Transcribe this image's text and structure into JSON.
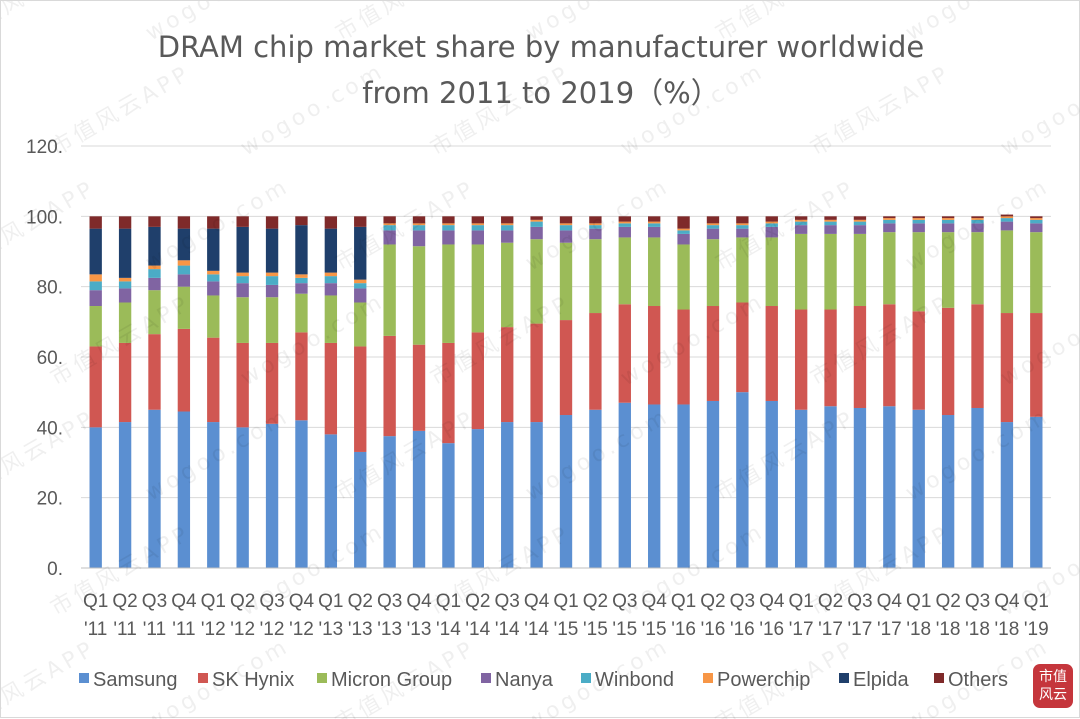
{
  "chart_data": {
    "type": "bar",
    "stacked": true,
    "title_lines": [
      "DRAM chip market share by manufacturer worldwide",
      "from 2011 to 2019（%）"
    ],
    "xlabel": "",
    "ylabel": "",
    "ylim": [
      0,
      120
    ],
    "yticks": [
      "0.",
      "20.",
      "40.",
      "60.",
      "80.",
      "100.",
      "120."
    ],
    "ytick_values": [
      0,
      20,
      40,
      60,
      80,
      100,
      120
    ],
    "grid": true,
    "legend_position": "bottom",
    "categories": [
      [
        "Q1",
        "'11"
      ],
      [
        "Q2",
        "'11"
      ],
      [
        "Q3",
        "'11"
      ],
      [
        "Q4",
        "'11"
      ],
      [
        "Q1",
        "'12"
      ],
      [
        "Q2",
        "'12"
      ],
      [
        "Q3",
        "'12"
      ],
      [
        "Q4",
        "'12"
      ],
      [
        "Q1",
        "'13"
      ],
      [
        "Q2",
        "'13"
      ],
      [
        "Q3",
        "'13"
      ],
      [
        "Q4",
        "'13"
      ],
      [
        "Q1",
        "'14"
      ],
      [
        "Q2",
        "'14"
      ],
      [
        "Q3",
        "'14"
      ],
      [
        "Q4",
        "'14"
      ],
      [
        "Q1",
        "'15"
      ],
      [
        "Q2",
        "'15"
      ],
      [
        "Q3",
        "'15"
      ],
      [
        "Q4",
        "'15"
      ],
      [
        "Q1",
        "'16"
      ],
      [
        "Q2",
        "'16"
      ],
      [
        "Q3",
        "'16"
      ],
      [
        "Q4",
        "'16"
      ],
      [
        "Q1",
        "'17"
      ],
      [
        "Q2",
        "'17"
      ],
      [
        "Q3",
        "'17"
      ],
      [
        "Q4",
        "'17"
      ],
      [
        "Q1",
        "'18"
      ],
      [
        "Q2",
        "'18"
      ],
      [
        "Q3",
        "'18"
      ],
      [
        "Q4",
        "'18"
      ],
      [
        "Q1",
        "'19"
      ]
    ],
    "series": [
      {
        "name": "Samsung",
        "color": "#5b8fd1",
        "values": [
          40.0,
          41.5,
          45.0,
          44.5,
          41.5,
          40.0,
          41.0,
          42.0,
          38.0,
          33.0,
          37.5,
          39.0,
          35.5,
          39.5,
          41.5,
          41.5,
          43.5,
          45.0,
          47.0,
          46.5,
          46.5,
          47.5,
          50.0,
          47.5,
          45.0,
          46.0,
          45.5,
          46.0,
          45.0,
          43.5,
          45.5,
          41.5,
          43.0
        ]
      },
      {
        "name": "SK Hynix",
        "color": "#d05752",
        "values": [
          23.0,
          22.5,
          21.5,
          23.5,
          24.0,
          24.0,
          23.0,
          25.0,
          26.0,
          30.0,
          28.5,
          24.5,
          28.5,
          27.5,
          27.0,
          28.0,
          27.0,
          27.5,
          28.0,
          28.0,
          27.0,
          27.0,
          25.5,
          27.0,
          28.5,
          27.5,
          29.0,
          29.0,
          28.0,
          30.5,
          29.5,
          31.0,
          29.5
        ]
      },
      {
        "name": "Micron Group",
        "color": "#9bbb59",
        "values": [
          11.5,
          11.5,
          12.5,
          12.0,
          12.0,
          13.0,
          13.0,
          11.0,
          13.5,
          12.5,
          26.0,
          28.0,
          28.0,
          25.0,
          24.0,
          24.0,
          22.0,
          21.0,
          19.0,
          19.5,
          18.5,
          19.0,
          18.5,
          19.5,
          21.5,
          21.5,
          20.5,
          20.5,
          22.5,
          21.5,
          20.5,
          23.5,
          23.0
        ]
      },
      {
        "name": "Nanya",
        "color": "#8064a2",
        "values": [
          4.5,
          4.0,
          3.5,
          3.5,
          4.0,
          4.0,
          3.5,
          3.0,
          3.5,
          4.0,
          4.0,
          4.5,
          4.0,
          4.0,
          3.5,
          3.5,
          3.5,
          3.0,
          3.0,
          3.0,
          3.0,
          3.0,
          2.5,
          3.0,
          2.5,
          2.5,
          2.5,
          2.5,
          2.5,
          2.5,
          2.5,
          2.5,
          2.5
        ]
      },
      {
        "name": "Winbond",
        "color": "#4bacc6",
        "values": [
          2.5,
          2.0,
          2.5,
          2.5,
          2.0,
          2.0,
          2.5,
          1.5,
          2.0,
          1.5,
          1.5,
          1.5,
          1.5,
          1.5,
          1.5,
          1.5,
          1.5,
          1.0,
          1.0,
          1.0,
          1.0,
          1.0,
          1.0,
          1.0,
          1.0,
          1.0,
          1.0,
          1.0,
          1.0,
          1.0,
          1.0,
          1.0,
          1.0
        ]
      },
      {
        "name": "Powerchip",
        "color": "#f79646",
        "values": [
          2.0,
          1.0,
          1.0,
          1.5,
          1.0,
          1.0,
          1.0,
          1.0,
          1.0,
          1.0,
          0.5,
          0.5,
          0.5,
          0.5,
          0.5,
          0.5,
          0.5,
          0.5,
          0.5,
          0.5,
          0.5,
          0.5,
          0.5,
          0.5,
          0.5,
          0.5,
          0.5,
          0.5,
          0.5,
          0.5,
          0.5,
          0.5,
          0.5
        ]
      },
      {
        "name": "Elpida",
        "color": "#1f3f6b",
        "values": [
          13.0,
          14.0,
          11.0,
          9.0,
          12.0,
          13.0,
          12.5,
          14.0,
          12.5,
          15.0,
          0,
          0,
          0,
          0,
          0,
          0,
          0,
          0,
          0,
          0,
          0,
          0,
          0,
          0,
          0,
          0,
          0,
          0,
          0,
          0,
          0,
          0,
          0
        ]
      },
      {
        "name": "Others",
        "color": "#7f2a2a",
        "values": [
          3.5,
          3.5,
          3.0,
          3.5,
          3.5,
          3.0,
          3.5,
          2.5,
          3.5,
          3.0,
          2.0,
          2.0,
          2.0,
          2.0,
          2.0,
          1.0,
          2.0,
          2.0,
          1.5,
          1.5,
          3.5,
          2.0,
          2.0,
          1.5,
          1.0,
          1.0,
          1.0,
          0.5,
          0.5,
          0.5,
          0.5,
          0.5,
          0.5
        ]
      }
    ]
  },
  "brand_logo": {
    "text": "市值风云"
  },
  "watermark": {
    "texts": [
      "市值风云APP",
      "wogoo.com"
    ]
  }
}
